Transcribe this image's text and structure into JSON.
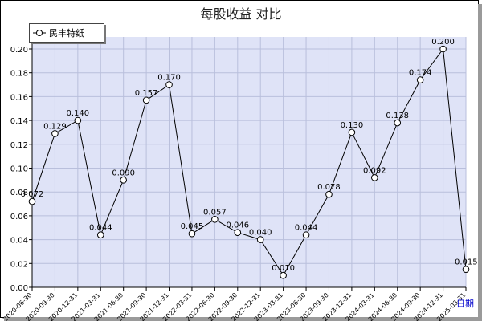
{
  "chart_data": {
    "type": "line",
    "title": "每股收益  对比",
    "xlabel": "日期",
    "ylabel": "",
    "ylim": [
      0,
      0.2
    ],
    "yticks": [
      "0.00",
      "0.02",
      "0.04",
      "0.06",
      "0.08",
      "0.10",
      "0.12",
      "0.14",
      "0.16",
      "0.18",
      "0.20"
    ],
    "grid": true,
    "legend_position": "top-left",
    "categories": [
      "2020-06-30",
      "2020-09-30",
      "2020-12-31",
      "2021-03-31",
      "2021-06-30",
      "2021-09-30",
      "2021-12-31",
      "2022-03-31",
      "2022-06-30",
      "2022-09-30",
      "2022-12-31",
      "2023-03-31",
      "2023-06-30",
      "2023-09-30",
      "2023-12-31",
      "2024-03-31",
      "2024-06-30",
      "2024-09-30",
      "2024-12-31",
      "2025-03-31"
    ],
    "series": [
      {
        "name": "民丰特纸",
        "values": [
          0.072,
          0.129,
          0.14,
          0.044,
          0.09,
          0.157,
          0.17,
          0.045,
          0.057,
          0.046,
          0.04,
          0.01,
          0.044,
          0.078,
          0.13,
          0.092,
          0.138,
          0.174,
          0.2,
          0.015
        ],
        "labels": [
          "0.072",
          "0.129",
          "0.140",
          "0.044",
          "0.090",
          "0.157",
          "0.170",
          "0.045",
          "0.057",
          "0.046",
          "0.040",
          "0.010",
          "0.044",
          "0.078",
          "0.130",
          "0.092",
          "0.138",
          "0.174",
          "0.200",
          "0.015"
        ]
      }
    ],
    "colors": {
      "plot_background": "#dfe3f7",
      "grid": "#b9bfdc",
      "line": "#000000",
      "marker_fill": "#ffffff",
      "axis_label": "#0000cc"
    }
  }
}
